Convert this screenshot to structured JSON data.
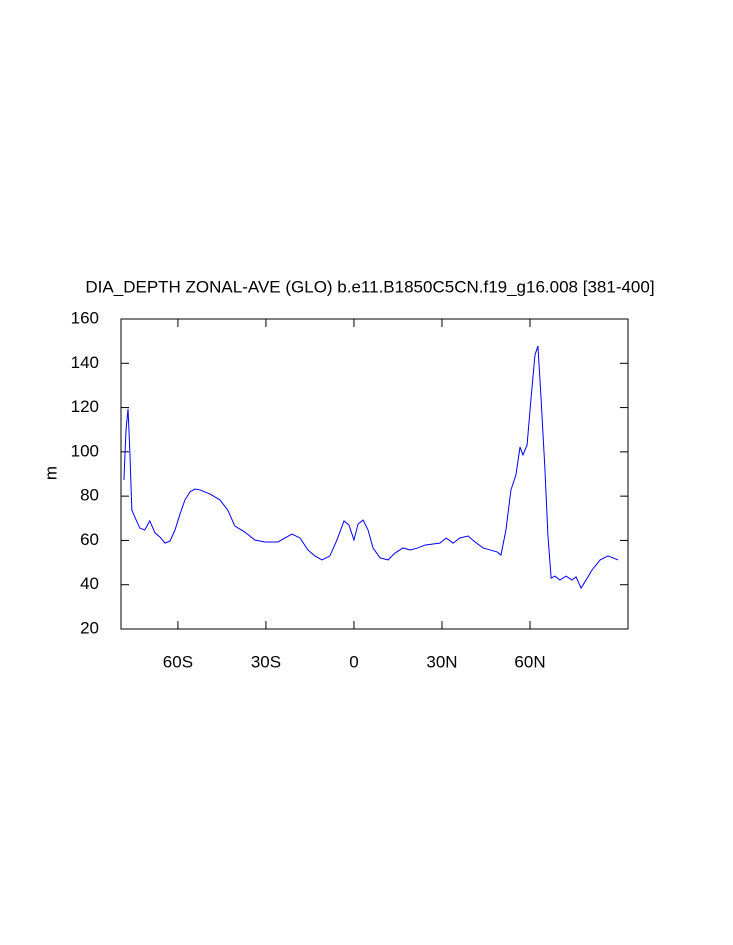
{
  "chart_data": {
    "type": "line",
    "title": "DIA_DEPTH ZONAL-AVE (GLO) b.e11.B1850C5CN.f19_g16.008 [381-400]",
    "y_label": "m",
    "x": [
      -78.4,
      -77.7,
      -77,
      -76.4,
      -75.7,
      -74.7,
      -73,
      -71.3,
      -69.6,
      -67.8,
      -66.1,
      -64.4,
      -62.7,
      -61,
      -59.3,
      -57.6,
      -55.9,
      -54.2,
      -52.5,
      -49.1,
      -45.7,
      -43,
      -40.6,
      -37.2,
      -33.8,
      -30.3,
      -25.9,
      -23.5,
      -21.1,
      -18.4,
      -15.7,
      -13.3,
      -10.9,
      -8.2,
      -5.8,
      -3.4,
      -1.7,
      0,
      1.4,
      3.1,
      4.8,
      6.5,
      8.9,
      11.6,
      14,
      16.7,
      19.1,
      21.8,
      24.2,
      26.9,
      29.3,
      31.4,
      33.8,
      36.1,
      38.9,
      41.3,
      44,
      46.4,
      48.8,
      50.1,
      51.8,
      53.5,
      55.2,
      56.6,
      57.6,
      59,
      60.3,
      61.7,
      62.7,
      63.8,
      65.1,
      66.1,
      67.2,
      68.5,
      70.2,
      72.3,
      74.3,
      75.7,
      77.4,
      79.1,
      81.1,
      83.9,
      86.6,
      90
    ],
    "series": [
      {
        "name": "DIA_DEPTH",
        "color": "#0000ff",
        "values": [
          87.3,
          109.9,
          119.4,
          100.8,
          73.7,
          70.6,
          65.6,
          64.7,
          68.8,
          63.4,
          61.5,
          58.8,
          59.7,
          64.7,
          71.9,
          78.3,
          81.9,
          83.2,
          82.8,
          81,
          78.3,
          73.7,
          66.5,
          63.8,
          60.2,
          59.3,
          59.3,
          61.1,
          62.9,
          61.1,
          55.7,
          53,
          51.2,
          53,
          60.2,
          68.8,
          67,
          60.2,
          67.4,
          69.2,
          64.7,
          56.6,
          52.1,
          51.2,
          54.3,
          56.6,
          55.7,
          56.6,
          57.9,
          58.4,
          58.8,
          61.1,
          58.8,
          61.1,
          62,
          59.3,
          56.6,
          55.7,
          54.8,
          53.4,
          64.7,
          82.8,
          89.6,
          102.2,
          98.6,
          103.1,
          123.4,
          143.8,
          147.8,
          123.4,
          91.8,
          62.5,
          43,
          43.9,
          42.1,
          43.9,
          42.1,
          43.5,
          38.5,
          42.1,
          46.6,
          51.2,
          53,
          51.2
        ]
      }
    ],
    "xlim": [
      -79.4,
      93.4
    ],
    "xticks": [
      {
        "value": -60,
        "label": "60S"
      },
      {
        "value": -30,
        "label": "30S"
      },
      0,
      {
        "value": 30,
        "label": "30N"
      },
      {
        "value": 60,
        "label": "60N"
      }
    ],
    "ylim": [
      20,
      160
    ],
    "yticks": [
      20,
      40,
      60,
      80,
      100,
      120,
      140,
      160
    ],
    "grid": false
  }
}
